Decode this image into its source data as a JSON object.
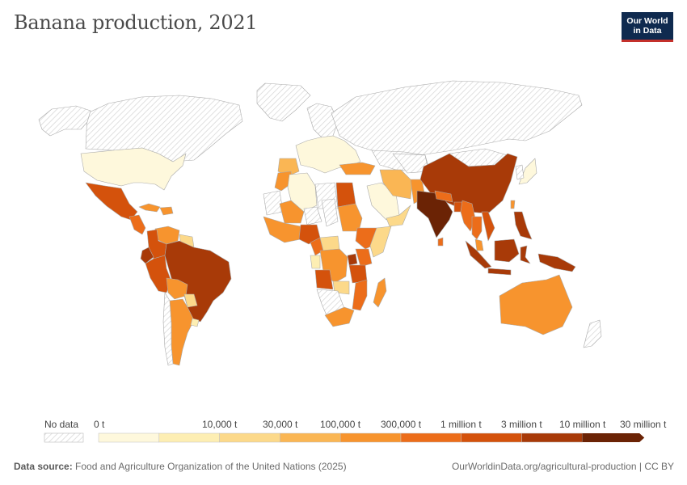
{
  "title": "Banana production, 2021",
  "logo": {
    "line1": "Our World",
    "line2": "in Data"
  },
  "legend": {
    "no_data": "No data",
    "bins": [
      "0 t",
      "10,000 t",
      "30,000 t",
      "100,000 t",
      "300,000 t",
      "1 million t",
      "3 million t",
      "10 million t",
      "30 million t"
    ],
    "colors": [
      "#fef8dc",
      "#fdeeb3",
      "#fcd98a",
      "#fab654",
      "#f7942e",
      "#ec6d1a",
      "#d4520c",
      "#a83a08",
      "#6b2305"
    ]
  },
  "footer": {
    "source_label": "Data source:",
    "source_text": "Food and Agriculture Organization of the United Nations (2025)",
    "url": "OurWorldinData.org/agricultural-production",
    "license": "CC BY"
  },
  "map_regions": [
    {
      "id": "greenland",
      "name": "Greenland",
      "level": "none"
    },
    {
      "id": "canada",
      "name": "Canada",
      "level": "none"
    },
    {
      "id": "alaska",
      "name": "Alaska",
      "level": "none"
    },
    {
      "id": "usa",
      "name": "United States",
      "level": 0
    },
    {
      "id": "mexico",
      "name": "Mexico",
      "level": 6
    },
    {
      "id": "central-america",
      "name": "Central America",
      "level": 5
    },
    {
      "id": "cuba",
      "name": "Cuba",
      "level": 4
    },
    {
      "id": "caribbean",
      "name": "Caribbean",
      "level": 4
    },
    {
      "id": "venezuela",
      "name": "Venezuela",
      "level": 4
    },
    {
      "id": "colombia",
      "name": "Colombia",
      "level": 6
    },
    {
      "id": "ecuador",
      "name": "Ecuador",
      "level": 7
    },
    {
      "id": "peru",
      "name": "Peru",
      "level": 6
    },
    {
      "id": "guianas",
      "name": "Guianas",
      "level": 2
    },
    {
      "id": "brazil",
      "name": "Brazil",
      "level": 7
    },
    {
      "id": "bolivia",
      "name": "Bolivia",
      "level": 4
    },
    {
      "id": "paraguay",
      "name": "Paraguay",
      "level": 2
    },
    {
      "id": "argentina",
      "name": "Argentina",
      "level": 4
    },
    {
      "id": "chile",
      "name": "Chile",
      "level": "none"
    },
    {
      "id": "uruguay",
      "name": "Uruguay",
      "level": 1
    },
    {
      "id": "europe",
      "name": "Europe",
      "level": 0
    },
    {
      "id": "iberia",
      "name": "Spain and Portugal",
      "level": 3
    },
    {
      "id": "scandinavia",
      "name": "Scandinavia",
      "level": "none"
    },
    {
      "id": "russia",
      "name": "Russia",
      "level": "none"
    },
    {
      "id": "kazakhstan",
      "name": "Kazakhstan",
      "level": "none"
    },
    {
      "id": "turkey",
      "name": "Turkey",
      "level": 4
    },
    {
      "id": "morocco",
      "name": "Morocco",
      "level": 4
    },
    {
      "id": "algeria",
      "name": "Algeria",
      "level": 0
    },
    {
      "id": "libya",
      "name": "Libya",
      "level": "none"
    },
    {
      "id": "egypt",
      "name": "Egypt",
      "level": 6
    },
    {
      "id": "mauritania",
      "name": "Mauritania",
      "level": "none"
    },
    {
      "id": "mali",
      "name": "Mali",
      "level": 4
    },
    {
      "id": "niger",
      "name": "Niger",
      "level": "none"
    },
    {
      "id": "chad",
      "name": "Chad",
      "level": "none"
    },
    {
      "id": "sudan",
      "name": "Sudan",
      "level": 4
    },
    {
      "id": "west-africa",
      "name": "West Africa",
      "level": 4
    },
    {
      "id": "nigeria",
      "name": "Nigeria",
      "level": 6
    },
    {
      "id": "cameroon",
      "name": "Cameroon",
      "level": 5
    },
    {
      "id": "car",
      "name": "Central African Republic",
      "level": 2
    },
    {
      "id": "ethiopia",
      "name": "Ethiopia",
      "level": 5
    },
    {
      "id": "somalia",
      "name": "Somalia",
      "level": 2
    },
    {
      "id": "gabon",
      "name": "Gabon",
      "level": 1
    },
    {
      "id": "drc",
      "name": "DR Congo",
      "level": 4
    },
    {
      "id": "uganda",
      "name": "Uganda",
      "level": 7
    },
    {
      "id": "kenya",
      "name": "Kenya",
      "level": 5
    },
    {
      "id": "tanzania",
      "name": "Tanzania",
      "level": 6
    },
    {
      "id": "angola",
      "name": "Angola",
      "level": 6
    },
    {
      "id": "zambia",
      "name": "Zambia",
      "level": 2
    },
    {
      "id": "mozambique",
      "name": "Mozambique",
      "level": 5
    },
    {
      "id": "namibia-botswana",
      "name": "Namibia and Botswana",
      "level": "none"
    },
    {
      "id": "south-africa",
      "name": "South Africa",
      "level": 4
    },
    {
      "id": "madagascar",
      "name": "Madagascar",
      "level": 4
    },
    {
      "id": "arabia",
      "name": "Saudi Arabia",
      "level": 0
    },
    {
      "id": "yemen-oman",
      "name": "Yemen and Oman",
      "level": 2
    },
    {
      "id": "iran",
      "name": "Iran",
      "level": 3
    },
    {
      "id": "pakistan",
      "name": "Pakistan",
      "level": 4
    },
    {
      "id": "central-asia",
      "name": "Central Asia",
      "level": "none"
    },
    {
      "id": "mongolia",
      "name": "Mongolia",
      "level": "none"
    },
    {
      "id": "china",
      "name": "China",
      "level": 7
    },
    {
      "id": "india",
      "name": "India",
      "level": 8
    },
    {
      "id": "bangladesh",
      "name": "Bangladesh",
      "level": 6
    },
    {
      "id": "nepal",
      "name": "Nepal",
      "level": 5
    },
    {
      "id": "myanmar",
      "name": "Myanmar",
      "level": 5
    },
    {
      "id": "thailand",
      "name": "Thailand",
      "level": 5
    },
    {
      "id": "vietnam",
      "name": "Vietnam",
      "level": 6
    },
    {
      "id": "malaysia",
      "name": "Malaysia",
      "level": 4
    },
    {
      "id": "sumatra",
      "name": "Sumatra",
      "level": 7
    },
    {
      "id": "java",
      "name": "Java",
      "level": 7
    },
    {
      "id": "borneo",
      "name": "Borneo",
      "level": 7
    },
    {
      "id": "sulawesi",
      "name": "Sulawesi",
      "level": 7
    },
    {
      "id": "philippines",
      "name": "Philippines",
      "level": 7
    },
    {
      "id": "new-guinea",
      "name": "New Guinea",
      "level": 7
    },
    {
      "id": "japan",
      "name": "Japan",
      "level": 0
    },
    {
      "id": "korea",
      "name": "Korea",
      "level": "none"
    },
    {
      "id": "taiwan",
      "name": "Taiwan",
      "level": 4
    },
    {
      "id": "sri-lanka",
      "name": "Sri Lanka",
      "level": 5
    },
    {
      "id": "australia",
      "name": "Australia",
      "level": 4
    },
    {
      "id": "new-zealand",
      "name": "New Zealand",
      "level": "none"
    }
  ]
}
